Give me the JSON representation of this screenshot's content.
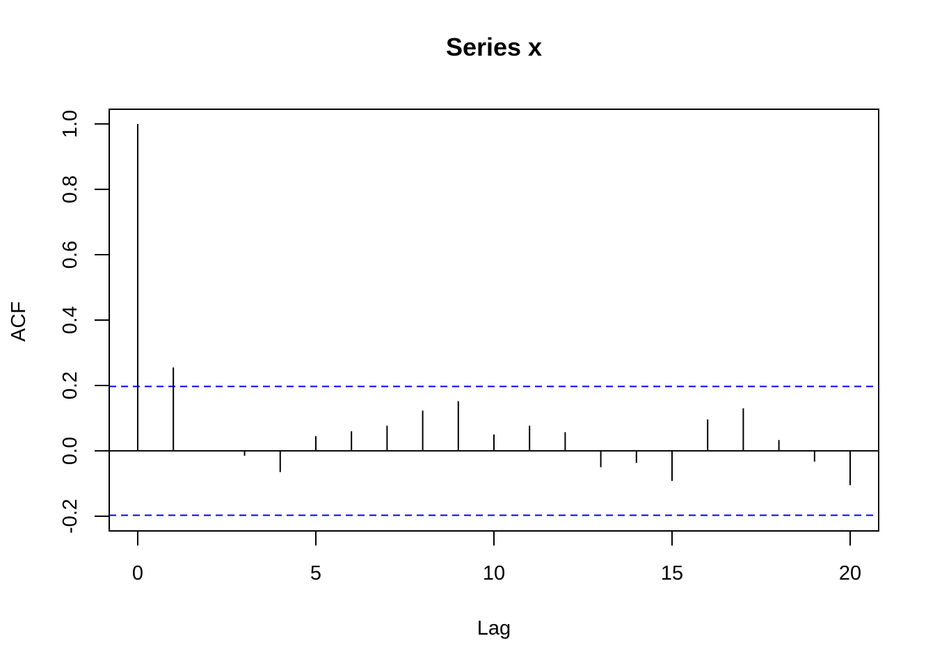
{
  "chart_data": {
    "type": "bar",
    "title": "Series  x",
    "xlabel": "Lag",
    "ylabel": "ACF",
    "xlim": [
      -0.8,
      20.8
    ],
    "ylim": [
      -0.245,
      1.045
    ],
    "x_ticks": [
      "0",
      "5",
      "10",
      "15",
      "20"
    ],
    "y_ticks": [
      "-0.2",
      "0.0",
      "0.2",
      "0.4",
      "0.6",
      "0.8",
      "1.0"
    ],
    "lags": [
      0,
      1,
      2,
      3,
      4,
      5,
      6,
      7,
      8,
      9,
      10,
      11,
      12,
      13,
      14,
      15,
      16,
      17,
      18,
      19,
      20
    ],
    "values": [
      1.0,
      0.255,
      0.0,
      -0.015,
      -0.065,
      0.045,
      0.06,
      0.077,
      0.123,
      0.152,
      0.05,
      0.077,
      0.057,
      -0.05,
      -0.037,
      -0.092,
      0.096,
      0.13,
      0.033,
      -0.033,
      -0.105
    ],
    "confidence_bounds": [
      0.197,
      -0.197
    ],
    "confidence_color": "#0000ff",
    "bar_color": "#000000",
    "grid": false
  }
}
